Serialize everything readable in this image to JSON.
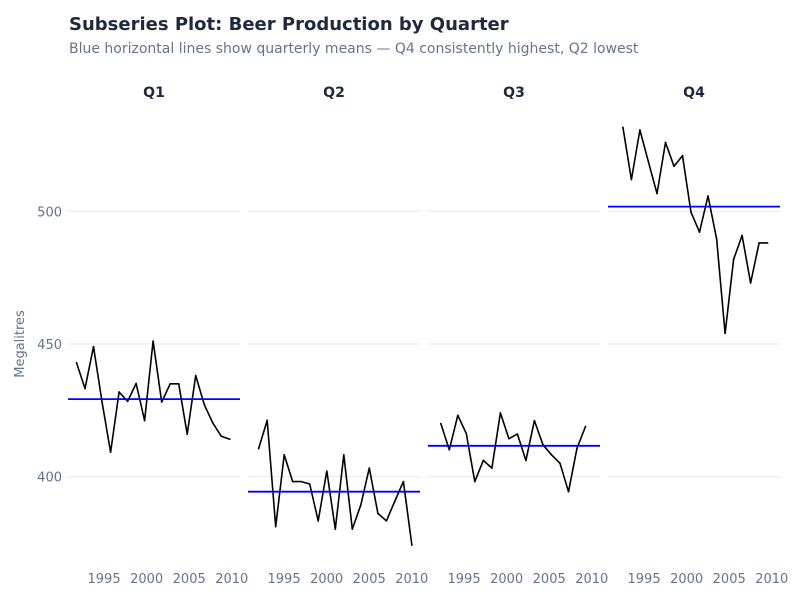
{
  "chart_data": {
    "type": "line",
    "title": "Subseries Plot: Beer Production by Quarter",
    "subtitle": "Blue horizontal lines show quarterly means — Q4 consistently highest, Q2 lowest",
    "ylabel": "Megalitres",
    "xlabel": "",
    "ylim": [
      361,
      542
    ],
    "xlim": [
      1991,
      2011.2
    ],
    "yticks": [
      400,
      450,
      500
    ],
    "xticks": [
      1995,
      2000,
      2005,
      2010
    ],
    "grid": true,
    "colors": {
      "series": "#000000",
      "mean": "#0000ff",
      "grid": "#e5e7eb"
    },
    "panels": [
      {
        "name": "Q1",
        "start_year": 1992,
        "offset": 0,
        "mean": 429.2,
        "values": [
          442.9,
          433.2,
          449,
          428,
          409.2,
          431.9,
          428.4,
          435.1,
          421.1,
          451.1,
          428.1,
          435,
          435,
          416,
          438.1,
          427.2,
          420.2,
          415.2,
          414.1
        ]
      },
      {
        "name": "Q2",
        "start_year": 1992,
        "offset": 0.25,
        "mean": 394.3,
        "values": [
          410.5,
          421.2,
          381.1,
          408.2,
          398.1,
          398.1,
          397.2,
          383.3,
          402.1,
          380.2,
          408.2,
          380.2,
          389.3,
          403.2,
          386.1,
          383.3,
          390.8,
          398.1,
          374.1
        ]
      },
      {
        "name": "Q3",
        "start_year": 1992,
        "offset": 0.5,
        "mean": 411.6,
        "values": [
          420,
          410.1,
          423.1,
          416.2,
          398.1,
          406.1,
          403.2,
          424,
          414.3,
          416,
          406.1,
          421.1,
          412,
          408.2,
          405,
          394.3,
          410.7,
          418.9
        ]
      },
      {
        "name": "Q4",
        "start_year": 1992,
        "offset": 0.75,
        "mean": 501.8,
        "values": [
          531.7,
          512,
          530.7,
          518.7,
          506.7,
          526,
          517,
          521,
          499.7,
          492.2,
          505.8,
          489.7,
          454,
          481.9,
          490.9,
          473,
          488.1,
          488.1
        ]
      }
    ]
  }
}
